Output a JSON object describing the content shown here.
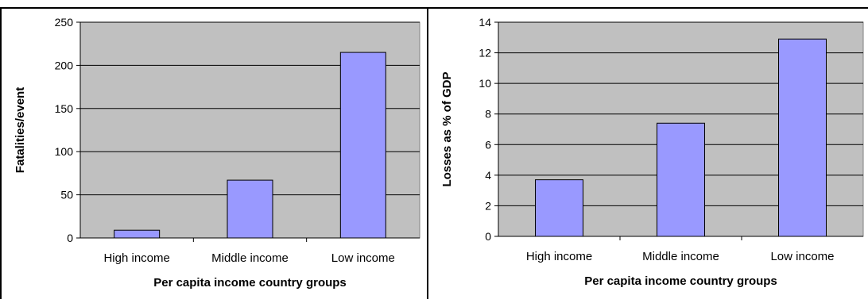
{
  "colors": {
    "plot_bg": "#C0C0C0",
    "bar_fill": "#9999FF",
    "bar_stroke": "#000000",
    "grid": "#000000",
    "text": "#000000"
  },
  "chart_data": [
    {
      "type": "bar",
      "categories": [
        "High income",
        "Middle income",
        "Low income"
      ],
      "values": [
        9,
        67,
        215
      ],
      "title": "",
      "xlabel": "Per capita income country groups",
      "ylabel": "Fatalities/event",
      "ylim": [
        0,
        250
      ],
      "yticks": [
        0,
        50,
        100,
        150,
        200,
        250
      ],
      "grid": true,
      "legend": "none"
    },
    {
      "type": "bar",
      "categories": [
        "High income",
        "Middle income",
        "Low income"
      ],
      "values": [
        3.7,
        7.4,
        12.9
      ],
      "title": "",
      "xlabel": "Per capita income country groups",
      "ylabel": "Losses as % of GDP",
      "ylim": [
        0,
        14
      ],
      "yticks": [
        0,
        2,
        4,
        6,
        8,
        10,
        12,
        14
      ],
      "grid": true,
      "legend": "none"
    }
  ]
}
